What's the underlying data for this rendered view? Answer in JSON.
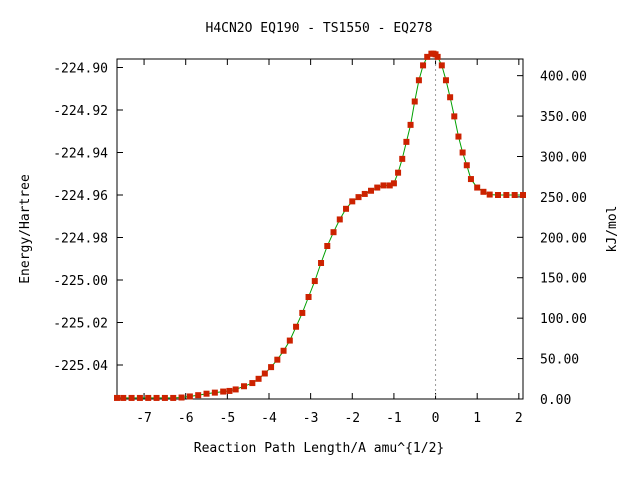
{
  "chart_data": {
    "type": "line",
    "title": "H4CN2O   EQ190 - TS1550 - EQ278",
    "xlabel": "Reaction Path Length/A amu^{1/2}",
    "ylabel": "Energy/Hartree",
    "y2label": "kJ/mol",
    "xlim": [
      -7.65,
      2.1
    ],
    "ylim": [
      -225.056,
      -224.896
    ],
    "y2lim": [
      0,
      420.6
    ],
    "xticks": [
      "-7",
      "-6",
      "-5",
      "-4",
      "-3",
      "-2",
      "-1",
      "0",
      "1",
      "2"
    ],
    "yticks": [
      "-224.90",
      "-224.92",
      "-224.94",
      "-224.96",
      "-224.98",
      "-225.00",
      "-225.02",
      "-225.04"
    ],
    "y2ticks": [
      "0.00",
      "50.00",
      "100.00",
      "150.00",
      "200.00",
      "250.00",
      "300.00",
      "350.00",
      "400.00"
    ],
    "ts_x": 0,
    "grid": false,
    "line_color": "#00a000",
    "marker_color": "#cc2200",
    "series": [
      {
        "x": [
          -7.65,
          -7.5,
          -7.3,
          -7.1,
          -6.9,
          -6.7,
          -6.5,
          -6.3,
          -6.1,
          -5.9,
          -5.7,
          -5.5,
          -5.3,
          -5.1,
          -4.95,
          -4.8,
          -4.6,
          -4.4,
          -4.25,
          -4.1,
          -3.95,
          -3.8,
          -3.65,
          -3.5,
          -3.35,
          -3.2,
          -3.05,
          -2.9,
          -2.75,
          -2.6,
          -2.45,
          -2.3,
          -2.15,
          -2.0,
          -1.85,
          -1.7,
          -1.55,
          -1.4,
          -1.25,
          -1.1,
          -1.0,
          -0.9,
          -0.8,
          -0.7,
          -0.6,
          -0.5,
          -0.4,
          -0.3,
          -0.2,
          -0.1,
          -0.05,
          0.0,
          0.05,
          0.15,
          0.25,
          0.35,
          0.45,
          0.55,
          0.65,
          0.75,
          0.85,
          1.0,
          1.15,
          1.3,
          1.5,
          1.7,
          1.9,
          2.1
        ],
        "y": [
          -225.0555,
          -225.0555,
          -225.0555,
          -225.0555,
          -225.0555,
          -225.0555,
          -225.0555,
          -225.0555,
          -225.0553,
          -225.0548,
          -225.0542,
          -225.0535,
          -225.053,
          -225.0525,
          -225.0522,
          -225.0515,
          -225.05,
          -225.0485,
          -225.0465,
          -225.044,
          -225.041,
          -225.0375,
          -225.0333,
          -225.0285,
          -225.022,
          -225.0155,
          -225.008,
          -225.0005,
          -224.992,
          -224.984,
          -224.9775,
          -224.9715,
          -224.9665,
          -224.963,
          -224.961,
          -224.9595,
          -224.958,
          -224.9565,
          -224.9555,
          -224.9555,
          -224.9545,
          -224.9495,
          -224.943,
          -224.935,
          -224.927,
          -224.916,
          -224.906,
          -224.899,
          -224.895,
          -224.8935,
          -224.8935,
          -224.8938,
          -224.895,
          -224.899,
          -224.906,
          -224.914,
          -224.923,
          -224.9325,
          -224.94,
          -224.946,
          -224.9525,
          -224.9565,
          -224.9585,
          -224.9598,
          -224.96,
          -224.96,
          -224.96,
          -224.96
        ]
      }
    ]
  }
}
